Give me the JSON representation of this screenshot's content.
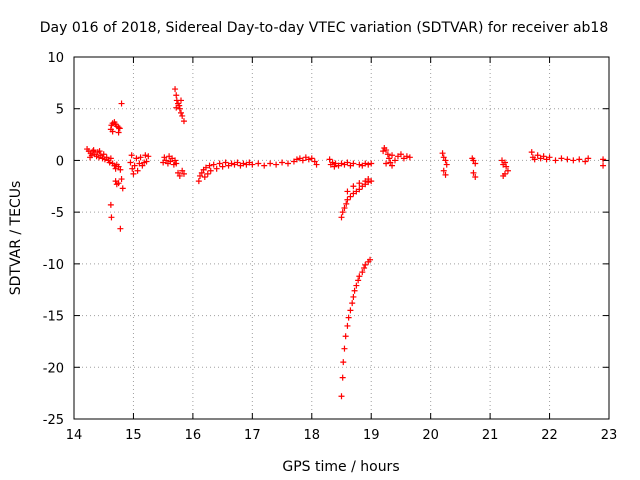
{
  "chart_data": {
    "type": "scatter",
    "title": "Day 016 of 2018, Sidereal Day-to-day VTEC variation (SDTVAR) for receiver ab18",
    "xlabel": "GPS time / hours",
    "ylabel": "SDTVAR / TECUs",
    "xlim": [
      14,
      23
    ],
    "ylim": [
      -25,
      10
    ],
    "xticks": [
      14,
      15,
      16,
      17,
      18,
      19,
      20,
      21,
      22,
      23
    ],
    "yticks": [
      -25,
      -20,
      -15,
      -10,
      -5,
      0,
      5,
      10
    ],
    "grid": true,
    "marker": "+",
    "color": "#ff0000",
    "series": [
      {
        "name": "SDTVAR",
        "points": [
          [
            14.22,
            1.1
          ],
          [
            14.25,
            0.9
          ],
          [
            14.28,
            0.7
          ],
          [
            14.3,
            0.5
          ],
          [
            14.32,
            0.9
          ],
          [
            14.35,
            0.6
          ],
          [
            14.38,
            0.4
          ],
          [
            14.4,
            0.8
          ],
          [
            14.42,
            0.3
          ],
          [
            14.45,
            0.5
          ],
          [
            14.48,
            0.2
          ],
          [
            14.5,
            0.6
          ],
          [
            14.52,
            0.1
          ],
          [
            14.55,
            0.3
          ],
          [
            14.58,
            0.0
          ],
          [
            14.6,
            -0.2
          ],
          [
            14.62,
            0.2
          ],
          [
            14.27,
            0.3
          ],
          [
            14.33,
            1.0
          ],
          [
            14.43,
            0.9
          ],
          [
            14.62,
            3.0
          ],
          [
            14.63,
            3.4
          ],
          [
            14.65,
            3.6
          ],
          [
            14.68,
            3.7
          ],
          [
            14.7,
            3.5
          ],
          [
            14.72,
            3.3
          ],
          [
            14.75,
            3.2
          ],
          [
            14.77,
            3.1
          ],
          [
            14.65,
            2.8
          ],
          [
            14.75,
            2.7
          ],
          [
            14.65,
            -0.3
          ],
          [
            14.68,
            -0.5
          ],
          [
            14.7,
            -0.8
          ],
          [
            14.72,
            -0.4
          ],
          [
            14.75,
            -0.6
          ],
          [
            14.78,
            -0.9
          ],
          [
            14.8,
            5.5
          ],
          [
            14.62,
            -4.3
          ],
          [
            14.63,
            -5.5
          ],
          [
            14.78,
            -6.6
          ],
          [
            14.7,
            -2.0
          ],
          [
            14.72,
            -2.3
          ],
          [
            14.75,
            -2.2
          ],
          [
            14.8,
            -1.8
          ],
          [
            14.82,
            -2.7
          ],
          [
            14.95,
            -0.2
          ],
          [
            14.97,
            0.5
          ],
          [
            14.98,
            -0.8
          ],
          [
            15.0,
            -1.3
          ],
          [
            15.02,
            -0.5
          ],
          [
            15.05,
            0.2
          ],
          [
            15.07,
            -1.0
          ],
          [
            15.1,
            -0.3
          ],
          [
            15.12,
            0.3
          ],
          [
            15.15,
            -0.5
          ],
          [
            15.18,
            -0.2
          ],
          [
            15.2,
            0.5
          ],
          [
            15.22,
            -0.1
          ],
          [
            15.25,
            0.4
          ],
          [
            15.5,
            -0.2
          ],
          [
            15.52,
            0.3
          ],
          [
            15.55,
            0.0
          ],
          [
            15.58,
            -0.3
          ],
          [
            15.6,
            0.4
          ],
          [
            15.62,
            -0.1
          ],
          [
            15.65,
            0.2
          ],
          [
            15.68,
            -0.4
          ],
          [
            15.7,
            0.0
          ],
          [
            15.72,
            -0.3
          ],
          [
            15.7,
            6.9
          ],
          [
            15.72,
            6.3
          ],
          [
            15.73,
            5.8
          ],
          [
            15.75,
            5.5
          ],
          [
            15.77,
            5.3
          ],
          [
            15.78,
            5.0
          ],
          [
            15.8,
            4.6
          ],
          [
            15.82,
            4.3
          ],
          [
            15.85,
            3.8
          ],
          [
            15.72,
            5.1
          ],
          [
            15.8,
            5.8
          ],
          [
            15.75,
            -1.2
          ],
          [
            15.78,
            -1.5
          ],
          [
            15.82,
            -1.0
          ],
          [
            15.85,
            -1.3
          ],
          [
            16.1,
            -2.0
          ],
          [
            16.12,
            -1.5
          ],
          [
            16.15,
            -1.2
          ],
          [
            16.18,
            -0.9
          ],
          [
            16.2,
            -1.6
          ],
          [
            16.22,
            -0.7
          ],
          [
            16.25,
            -1.3
          ],
          [
            16.28,
            -0.5
          ],
          [
            16.3,
            -1.0
          ],
          [
            16.35,
            -0.4
          ],
          [
            16.4,
            -0.8
          ],
          [
            16.45,
            -0.3
          ],
          [
            16.5,
            -0.6
          ],
          [
            16.55,
            -0.2
          ],
          [
            16.6,
            -0.5
          ],
          [
            16.65,
            -0.3
          ],
          [
            16.7,
            -0.4
          ],
          [
            16.75,
            -0.2
          ],
          [
            16.8,
            -0.5
          ],
          [
            16.85,
            -0.3
          ],
          [
            16.9,
            -0.4
          ],
          [
            16.95,
            -0.2
          ],
          [
            17.0,
            -0.4
          ],
          [
            17.1,
            -0.3
          ],
          [
            17.2,
            -0.5
          ],
          [
            17.3,
            -0.3
          ],
          [
            17.4,
            -0.4
          ],
          [
            17.5,
            -0.2
          ],
          [
            17.6,
            -0.3
          ],
          [
            17.7,
            -0.1
          ],
          [
            17.75,
            0.1
          ],
          [
            17.8,
            0.2
          ],
          [
            17.85,
            0.0
          ],
          [
            17.9,
            0.3
          ],
          [
            17.95,
            0.1
          ],
          [
            18.0,
            0.2
          ],
          [
            18.05,
            -0.1
          ],
          [
            18.08,
            -0.4
          ],
          [
            18.3,
            0.1
          ],
          [
            18.32,
            -0.4
          ],
          [
            18.35,
            -0.2
          ],
          [
            18.38,
            -0.6
          ],
          [
            18.4,
            -0.3
          ],
          [
            18.45,
            -0.5
          ],
          [
            18.5,
            -0.3
          ],
          [
            18.55,
            -0.4
          ],
          [
            18.6,
            -0.2
          ],
          [
            18.65,
            -0.5
          ],
          [
            18.7,
            -0.3
          ],
          [
            18.8,
            -0.4
          ],
          [
            18.85,
            -0.5
          ],
          [
            18.9,
            -0.3
          ],
          [
            18.95,
            -0.4
          ],
          [
            19.0,
            -0.3
          ],
          [
            18.5,
            -5.5
          ],
          [
            18.52,
            -5.0
          ],
          [
            18.55,
            -4.6
          ],
          [
            18.58,
            -4.2
          ],
          [
            18.6,
            -3.8
          ],
          [
            18.65,
            -3.5
          ],
          [
            18.7,
            -3.2
          ],
          [
            18.75,
            -3.0
          ],
          [
            18.8,
            -2.8
          ],
          [
            18.85,
            -2.5
          ],
          [
            18.9,
            -2.3
          ],
          [
            18.95,
            -2.1
          ],
          [
            19.0,
            -2.0
          ],
          [
            18.6,
            -3.0
          ],
          [
            18.7,
            -2.5
          ],
          [
            18.8,
            -2.2
          ],
          [
            18.9,
            -2.0
          ],
          [
            18.95,
            -1.8
          ],
          [
            18.5,
            -22.8
          ],
          [
            18.52,
            -21.0
          ],
          [
            18.53,
            -19.5
          ],
          [
            18.55,
            -18.2
          ],
          [
            18.57,
            -17.0
          ],
          [
            18.6,
            -16.0
          ],
          [
            18.62,
            -15.2
          ],
          [
            18.65,
            -14.5
          ],
          [
            18.68,
            -13.8
          ],
          [
            18.7,
            -13.2
          ],
          [
            18.72,
            -12.6
          ],
          [
            18.75,
            -12.1
          ],
          [
            18.78,
            -11.6
          ],
          [
            18.8,
            -11.2
          ],
          [
            18.85,
            -10.8
          ],
          [
            18.88,
            -10.4
          ],
          [
            18.9,
            -10.1
          ],
          [
            18.95,
            -9.8
          ],
          [
            18.98,
            -9.6
          ],
          [
            19.2,
            0.9
          ],
          [
            19.22,
            1.2
          ],
          [
            19.25,
            1.0
          ],
          [
            19.28,
            0.6
          ],
          [
            19.3,
            0.2
          ],
          [
            19.32,
            -0.2
          ],
          [
            19.35,
            -0.5
          ],
          [
            19.4,
            0.0
          ],
          [
            19.45,
            0.4
          ],
          [
            19.5,
            0.6
          ],
          [
            19.55,
            0.2
          ],
          [
            19.6,
            0.4
          ],
          [
            19.65,
            0.3
          ],
          [
            19.25,
            -0.3
          ],
          [
            19.35,
            0.5
          ],
          [
            20.2,
            0.7
          ],
          [
            20.22,
            0.3
          ],
          [
            20.25,
            0.0
          ],
          [
            20.27,
            -0.4
          ],
          [
            20.22,
            -1.0
          ],
          [
            20.25,
            -1.4
          ],
          [
            20.7,
            0.2
          ],
          [
            20.72,
            0.0
          ],
          [
            20.75,
            -0.3
          ],
          [
            20.72,
            -1.2
          ],
          [
            20.75,
            -1.6
          ],
          [
            21.2,
            0.0
          ],
          [
            21.22,
            -0.4
          ],
          [
            21.25,
            -0.2
          ],
          [
            21.27,
            -0.6
          ],
          [
            21.3,
            -1.0
          ],
          [
            21.22,
            -1.5
          ],
          [
            21.25,
            -1.3
          ],
          [
            21.7,
            0.8
          ],
          [
            21.72,
            0.3
          ],
          [
            21.75,
            0.1
          ],
          [
            21.8,
            0.5
          ],
          [
            21.85,
            0.2
          ],
          [
            21.9,
            0.4
          ],
          [
            21.95,
            0.1
          ],
          [
            22.0,
            0.3
          ],
          [
            22.1,
            0.0
          ],
          [
            22.2,
            0.2
          ],
          [
            22.3,
            0.1
          ],
          [
            22.4,
            0.0
          ],
          [
            22.5,
            0.1
          ],
          [
            22.6,
            -0.1
          ],
          [
            22.65,
            0.2
          ],
          [
            22.9,
            0.1
          ],
          [
            22.9,
            -0.5
          ]
        ]
      }
    ]
  }
}
